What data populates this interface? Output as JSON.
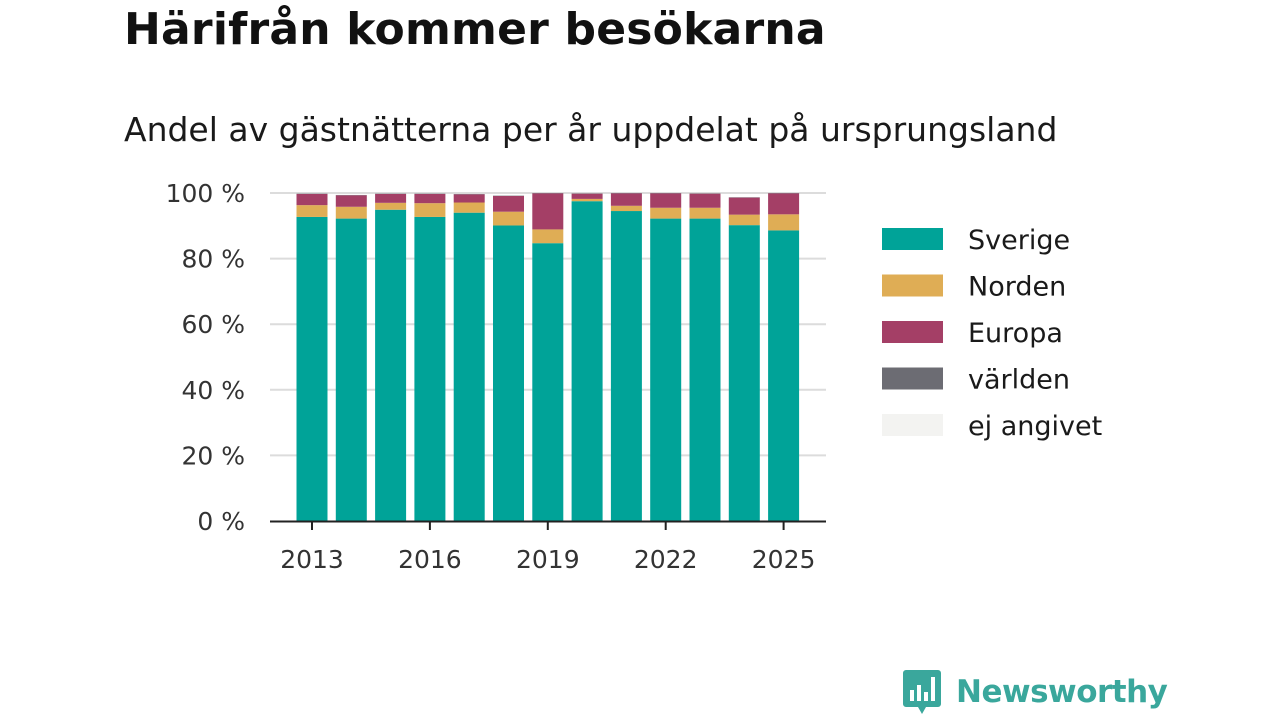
{
  "header": {
    "title": "Härifrån kommer besökarna",
    "subtitle": "Andel av gästnätterna per år uppdelat på ursprungsland"
  },
  "brand": {
    "name": "Newsworthy",
    "logo_icon": "bar-chart-bubble-icon",
    "color": "#3aa79c"
  },
  "chart_data": {
    "type": "bar",
    "stacked": true,
    "categories": [
      "2013",
      "2014",
      "2015",
      "2016",
      "2017",
      "2018",
      "2019",
      "2020",
      "2021",
      "2022",
      "2023",
      "2024",
      "2025"
    ],
    "x_tick_labels": [
      "2013",
      "2016",
      "2019",
      "2022",
      "2025"
    ],
    "y_tick_labels": [
      "0 %",
      "20 %",
      "40 %",
      "60 %",
      "80 %",
      "100 %"
    ],
    "ylim": [
      0,
      100
    ],
    "grid": true,
    "legend_position": "right",
    "series": [
      {
        "name": "Sverige",
        "color": "#00a398",
        "values": [
          92.7,
          92.2,
          94.9,
          92.7,
          94.0,
          90.1,
          84.7,
          97.5,
          94.5,
          92.2,
          92.2,
          90.2,
          88.6
        ]
      },
      {
        "name": "Norden",
        "color": "#dfad55",
        "values": [
          3.6,
          3.6,
          2.1,
          4.2,
          3.1,
          4.2,
          4.2,
          0.7,
          1.6,
          3.3,
          3.3,
          3.2,
          4.9
        ]
      },
      {
        "name": "Europa",
        "color": "#a43f66",
        "values": [
          3.4,
          3.5,
          2.7,
          2.8,
          2.5,
          4.8,
          11.0,
          1.6,
          3.8,
          4.4,
          4.3,
          5.2,
          6.4
        ]
      },
      {
        "name": "världen",
        "color": "#6c6c73",
        "values": [
          0.1,
          0.1,
          0.1,
          0.1,
          0.1,
          0.1,
          0.1,
          0.1,
          0.1,
          0.1,
          0.1,
          0.1,
          0.1
        ]
      },
      {
        "name": "ej angivet",
        "color": "#f3f3f1",
        "values": [
          0,
          0,
          0,
          0,
          0,
          0,
          0,
          0,
          0,
          0,
          0,
          0,
          0
        ]
      }
    ]
  }
}
